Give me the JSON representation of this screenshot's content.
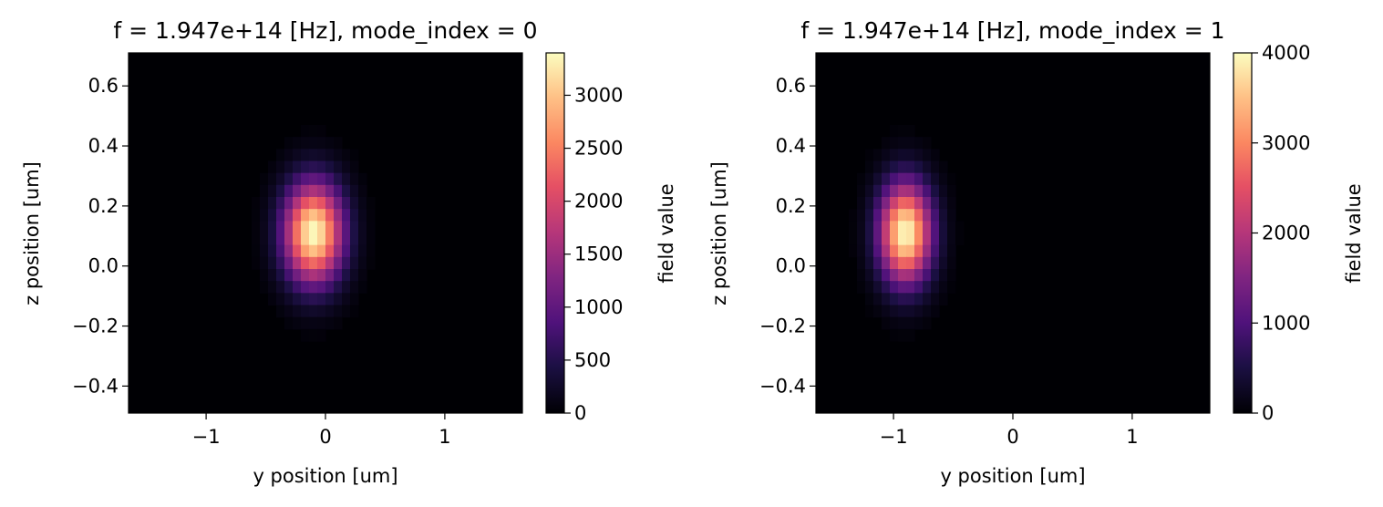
{
  "chart_data": [
    {
      "type": "heatmap",
      "title": "f = 1.947e+14 [Hz], mode_index = 0",
      "xlabel": "y position [um]",
      "ylabel": "z position [um]",
      "xlim": [
        -1.65,
        1.65
      ],
      "ylim": [
        -0.49,
        0.71
      ],
      "xticks": [
        {
          "value": -1,
          "label": "−1"
        },
        {
          "value": 0,
          "label": "0"
        },
        {
          "value": 1,
          "label": "1"
        }
      ],
      "yticks": [
        {
          "value": -0.4,
          "label": "−0.4"
        },
        {
          "value": -0.2,
          "label": "−0.2"
        },
        {
          "value": 0.0,
          "label": "0.0"
        },
        {
          "value": 0.2,
          "label": "0.2"
        },
        {
          "value": 0.4,
          "label": "0.4"
        },
        {
          "value": 0.6,
          "label": "0.6"
        }
      ],
      "peak": {
        "y": -0.1,
        "z": 0.11,
        "value": 3400
      },
      "spot_sigma": {
        "y": 0.17,
        "z": 0.115
      },
      "grid": false,
      "colormap": "magma",
      "colorbar": {
        "label": "field value",
        "min": 0,
        "max": 3400,
        "ticks": [
          {
            "value": 0,
            "label": "0"
          },
          {
            "value": 500,
            "label": "500"
          },
          {
            "value": 1000,
            "label": "1000"
          },
          {
            "value": 1500,
            "label": "1500"
          },
          {
            "value": 2000,
            "label": "2000"
          },
          {
            "value": 2500,
            "label": "2500"
          },
          {
            "value": 3000,
            "label": "3000"
          }
        ]
      }
    },
    {
      "type": "heatmap",
      "title": "f = 1.947e+14 [Hz], mode_index = 1",
      "xlabel": "y position [um]",
      "ylabel": "z position [um]",
      "xlim": [
        -1.65,
        1.65
      ],
      "ylim": [
        -0.49,
        0.71
      ],
      "xticks": [
        {
          "value": -1,
          "label": "−1"
        },
        {
          "value": 0,
          "label": "0"
        },
        {
          "value": 1,
          "label": "1"
        }
      ],
      "yticks": [
        {
          "value": -0.4,
          "label": "−0.4"
        },
        {
          "value": -0.2,
          "label": "−0.2"
        },
        {
          "value": 0.0,
          "label": "0.0"
        },
        {
          "value": 0.2,
          "label": "0.2"
        },
        {
          "value": 0.4,
          "label": "0.4"
        },
        {
          "value": 0.6,
          "label": "0.6"
        }
      ],
      "peak": {
        "y": -0.9,
        "z": 0.11,
        "value": 4000
      },
      "spot_sigma": {
        "y": 0.15,
        "z": 0.115
      },
      "grid": false,
      "colormap": "magma",
      "colorbar": {
        "label": "field value",
        "min": 0,
        "max": 4000,
        "ticks": [
          {
            "value": 0,
            "label": "0"
          },
          {
            "value": 1000,
            "label": "1000"
          },
          {
            "value": 2000,
            "label": "2000"
          },
          {
            "value": 3000,
            "label": "3000"
          },
          {
            "value": 4000,
            "label": "4000"
          }
        ]
      }
    }
  ]
}
